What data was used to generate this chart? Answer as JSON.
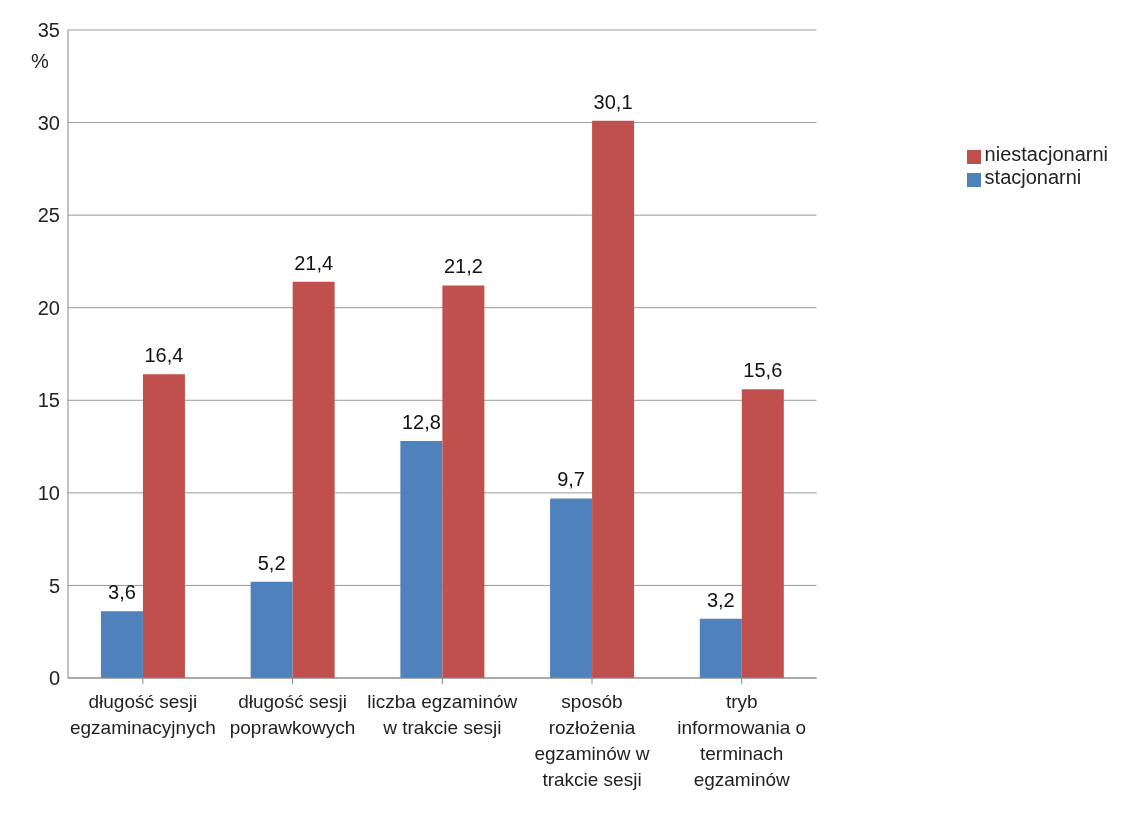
{
  "chart_data": {
    "type": "bar",
    "ylabel": "%",
    "categories": [
      "długość sesji egzaminacyjnych",
      "długość sesji poprawkowych",
      "liczba egzaminów w trakcie sesji",
      "sposób rozłożenia egzaminów w trakcie sesji",
      "tryb informowania o terminach egzaminów"
    ],
    "series": [
      {
        "name": "stacjonarni",
        "color": "#4f81bd",
        "values": [
          3.6,
          5.2,
          12.8,
          9.7,
          3.2
        ],
        "value_labels": [
          "3,6",
          "5,2",
          "12,8",
          "9,7",
          "3,2"
        ]
      },
      {
        "name": "niestacjonarni",
        "color": "#c0504d",
        "values": [
          16.4,
          21.4,
          21.2,
          30.1,
          15.6
        ],
        "value_labels": [
          "16,4",
          "21,4",
          "21,2",
          "30,1",
          "15,6"
        ]
      }
    ],
    "ylim": [
      0,
      35
    ],
    "yticks": [
      0,
      5,
      10,
      15,
      20,
      25,
      30,
      35
    ],
    "grid": "y",
    "legend": "right"
  }
}
